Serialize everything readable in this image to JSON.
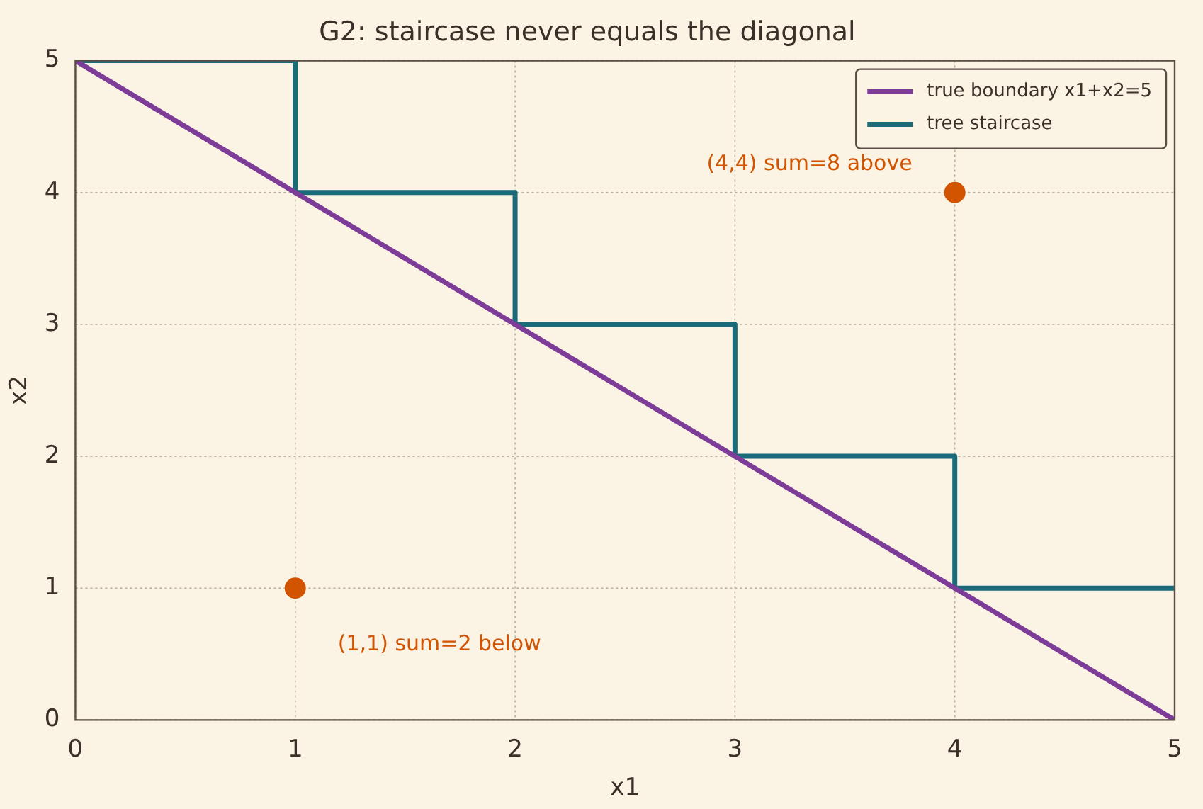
{
  "chart_data": {
    "type": "line",
    "title": "G2: staircase never equals the diagonal",
    "xlabel": "x1",
    "ylabel": "x2",
    "xlim": [
      0,
      5
    ],
    "ylim": [
      0,
      5
    ],
    "xticks": [
      0,
      1,
      2,
      3,
      4,
      5
    ],
    "yticks": [
      0,
      1,
      2,
      3,
      4,
      5
    ],
    "grid": true,
    "legend": "top right",
    "marker": "none",
    "line_style": "solid",
    "series": [
      {
        "name": "true boundary x1+x2=5",
        "color": "#7d3c98",
        "x": [
          0,
          5
        ],
        "values": [
          5,
          0
        ]
      },
      {
        "name": "tree staircase",
        "color": "#1a6b7a",
        "x": [
          0,
          1,
          1,
          2,
          2,
          3,
          3,
          4,
          4,
          5
        ],
        "values": [
          5,
          5,
          4,
          4,
          3,
          3,
          2,
          2,
          1,
          1
        ]
      },
      {
        "type": "scatter",
        "color": "#d35400",
        "marker": "circle",
        "x": [
          4,
          1
        ],
        "values": [
          4,
          1
        ]
      }
    ],
    "annotations": [
      "(4,4) sum=8 above",
      "(1,1) sum=2 below"
    ]
  }
}
